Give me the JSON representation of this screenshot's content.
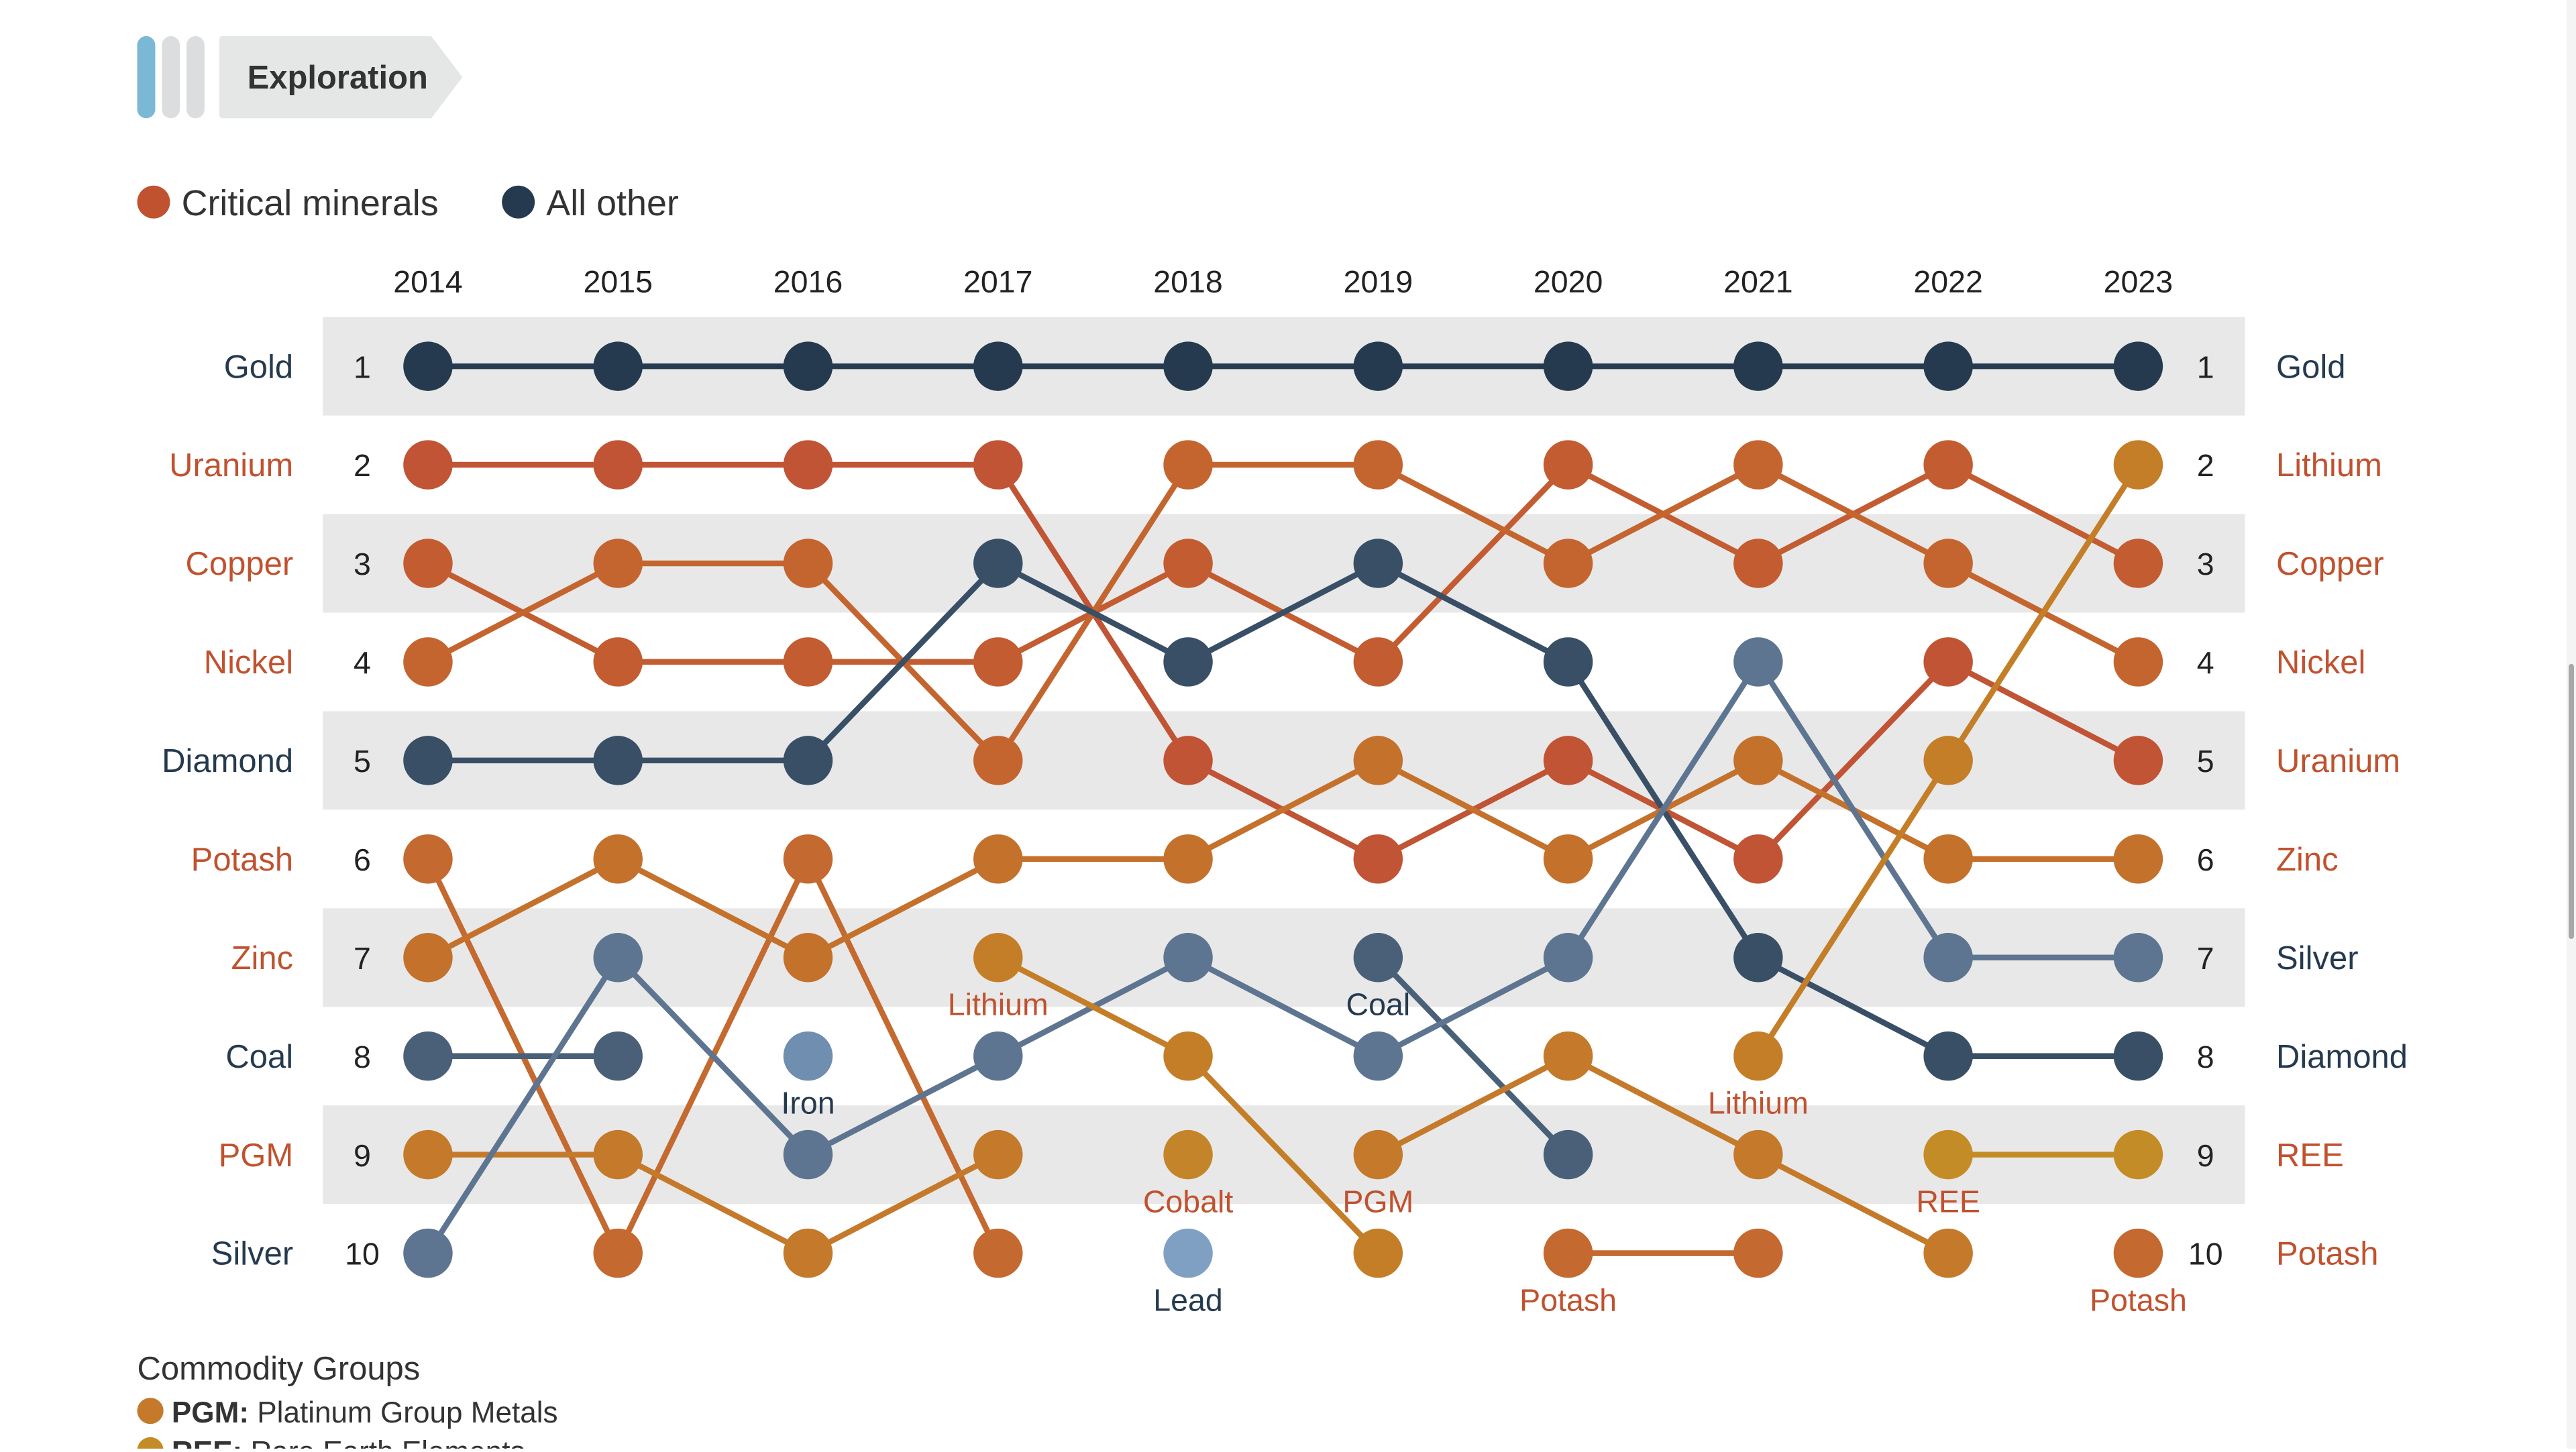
{
  "header": {
    "step_title": "Exploration",
    "step_colors": [
      "#7ab8d6",
      "#dcdddf",
      "#dcdddf"
    ]
  },
  "legend": [
    {
      "label": "Critical minerals",
      "color": "#c0522f"
    },
    {
      "label": "All other",
      "color": "#253a4f"
    }
  ],
  "footnote": {
    "title": "Commodity Groups",
    "items": [
      {
        "abbr": "PGM:",
        "text": "Platinum Group Metals",
        "color": "#c47a2a"
      },
      {
        "abbr": "REE:",
        "text": "Rare Earth Elements",
        "color": "#c48c26"
      }
    ]
  },
  "colors": {
    "critical_text": "#c0522f",
    "other_text": "#253a4f",
    "band": "#e8e8e8"
  },
  "chart_data": {
    "type": "line",
    "subtype": "bump",
    "years": [
      "2014",
      "2015",
      "2016",
      "2017",
      "2018",
      "2019",
      "2020",
      "2021",
      "2022",
      "2023"
    ],
    "ranks": [
      1,
      2,
      3,
      4,
      5,
      6,
      7,
      8,
      9,
      10
    ],
    "series": [
      {
        "name": "Gold",
        "critical": false,
        "color": "#253a4f",
        "ranks": [
          1,
          1,
          1,
          1,
          1,
          1,
          1,
          1,
          1,
          1
        ]
      },
      {
        "name": "Uranium",
        "critical": true,
        "color": "#c05434",
        "ranks": [
          2,
          2,
          2,
          2,
          5,
          6,
          5,
          6,
          4,
          5
        ]
      },
      {
        "name": "Copper",
        "critical": true,
        "color": "#c35c31",
        "ranks": [
          3,
          4,
          4,
          4,
          3,
          4,
          2,
          3,
          2,
          3
        ]
      },
      {
        "name": "Nickel",
        "critical": true,
        "color": "#c4652f",
        "ranks": [
          4,
          3,
          3,
          5,
          2,
          2,
          3,
          2,
          3,
          4
        ]
      },
      {
        "name": "Diamond",
        "critical": false,
        "color": "#394f66",
        "ranks": [
          5,
          5,
          5,
          3,
          4,
          3,
          4,
          7,
          8,
          8
        ]
      },
      {
        "name": "Potash",
        "critical": true,
        "color": "#c4692f",
        "ranks": [
          6,
          10,
          6,
          10,
          null,
          null,
          10,
          10,
          null,
          10
        ]
      },
      {
        "name": "Zinc",
        "critical": true,
        "color": "#c4712c",
        "ranks": [
          7,
          6,
          7,
          6,
          6,
          5,
          6,
          5,
          6,
          6
        ]
      },
      {
        "name": "Coal",
        "critical": false,
        "color": "#4a6079",
        "ranks": [
          8,
          8,
          null,
          null,
          null,
          7,
          9,
          null,
          null,
          null
        ]
      },
      {
        "name": "PGM",
        "critical": true,
        "color": "#c47a2a",
        "ranks": [
          9,
          9,
          10,
          9,
          null,
          9,
          8,
          9,
          10,
          null
        ]
      },
      {
        "name": "Silver",
        "critical": false,
        "color": "#5d7590",
        "ranks": [
          10,
          7,
          9,
          8,
          7,
          8,
          7,
          4,
          7,
          7
        ]
      },
      {
        "name": "Iron",
        "critical": false,
        "color": "#6f8eb0",
        "ranks": [
          null,
          null,
          8,
          null,
          null,
          null,
          null,
          null,
          null,
          null
        ]
      },
      {
        "name": "Lithium",
        "critical": true,
        "color": "#c47e28",
        "ranks": [
          null,
          null,
          null,
          7,
          8,
          10,
          null,
          8,
          5,
          2
        ]
      },
      {
        "name": "Cobalt",
        "critical": true,
        "color": "#c4852a",
        "ranks": [
          null,
          null,
          null,
          null,
          9,
          null,
          null,
          null,
          null,
          null
        ]
      },
      {
        "name": "Lead",
        "critical": false,
        "color": "#7fa0c3",
        "ranks": [
          null,
          null,
          null,
          null,
          10,
          null,
          null,
          null,
          null,
          null
        ]
      },
      {
        "name": "REE",
        "critical": true,
        "color": "#c48c26",
        "ranks": [
          null,
          null,
          null,
          null,
          null,
          null,
          null,
          null,
          9,
          9
        ]
      }
    ]
  }
}
